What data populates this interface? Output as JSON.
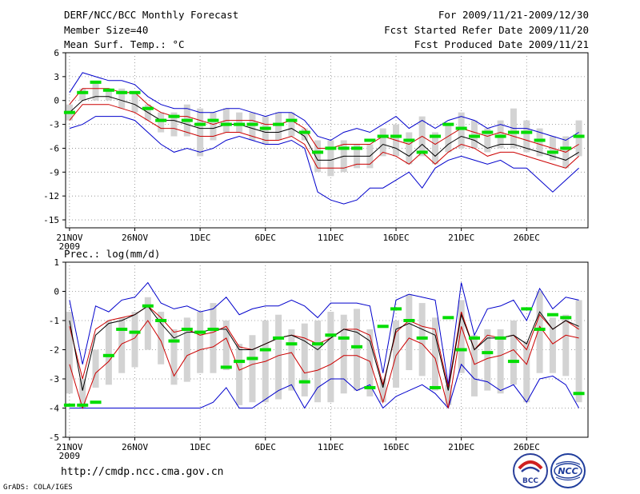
{
  "header": {
    "title": "DERF/NCC/BCC Monthly Forecast",
    "member_size": "Member Size=40",
    "temp_label": "Mean Surf. Temp.: °C",
    "period": "For 2009/11/21-2009/12/30",
    "start_date": "Fcst Started Refer Date 2009/11/20",
    "produced_date": "Fcst Produced Date 2009/11/21"
  },
  "footer": {
    "url": "http://cmdp.ncc.cma.gov.cn",
    "credit": "GrADS: COLA/IGES",
    "logo_bcc": "BCC",
    "logo_ncc": "NCC"
  },
  "colors": {
    "max_min": "#0000cc",
    "pct": "#cc0000",
    "median": "#000000",
    "box": "#d3d3d3",
    "obs": "#00dd00"
  },
  "chart_data": [
    {
      "type": "box",
      "name": "temperature",
      "ylabel": "Mean Surf. Temp.: °C",
      "ylim": [
        -16,
        6
      ],
      "yticks": [
        6,
        3,
        0,
        -3,
        -6,
        -9,
        -12,
        -15
      ],
      "xlim": [
        0.7,
        40.7
      ],
      "xticks": [
        {
          "day": 1,
          "label": "21NOV",
          "sub": "2009"
        },
        {
          "day": 6,
          "label": "26NOV"
        },
        {
          "day": 11,
          "label": "1DEC"
        },
        {
          "day": 16,
          "label": "6DEC"
        },
        {
          "day": 21,
          "label": "11DEC"
        },
        {
          "day": 26,
          "label": "16DEC"
        },
        {
          "day": 31,
          "label": "21DEC"
        },
        {
          "day": 36,
          "label": "26DEC"
        }
      ],
      "max": [
        1,
        3.5,
        3,
        2.5,
        2.5,
        2,
        0.5,
        -0.5,
        -1,
        -1,
        -1.5,
        -1.5,
        -1,
        -1,
        -1.5,
        -2,
        -1.5,
        -1.5,
        -2.5,
        -4.5,
        -5,
        -4,
        -3.5,
        -4,
        -3,
        -2,
        -3.5,
        -2.5,
        -3.5,
        -2.5,
        -2,
        -2.5,
        -3.5,
        -3,
        -3.5,
        -3.5,
        -4,
        -4.5,
        -5,
        -4
      ],
      "p_hi": [
        -0.5,
        1.5,
        1.5,
        1.5,
        1,
        1,
        -0.5,
        -1.5,
        -2,
        -2,
        -2.5,
        -3,
        -2.5,
        -2.5,
        -2.5,
        -3,
        -3,
        -2.5,
        -3.5,
        -6,
        -6,
        -5.5,
        -5.5,
        -5.5,
        -4.5,
        -5,
        -5.5,
        -4.5,
        -5.5,
        -4.5,
        -3.5,
        -4,
        -4.5,
        -4,
        -4.5,
        -5,
        -5.5,
        -6,
        -6.5,
        -5.5
      ],
      "median": [
        -1.5,
        0,
        0.5,
        0.5,
        0,
        -0.5,
        -1.5,
        -2.5,
        -2.5,
        -3,
        -3.5,
        -3.5,
        -3,
        -3,
        -3.5,
        -4,
        -4,
        -3.5,
        -4.5,
        -7.5,
        -7.5,
        -7,
        -7,
        -7,
        -5.5,
        -6,
        -7,
        -5.5,
        -7,
        -5.5,
        -4.5,
        -5,
        -6,
        -5.5,
        -5.5,
        -6,
        -6.5,
        -7,
        -7.5,
        -6.5
      ],
      "p_lo": [
        -2.5,
        -0.5,
        -0.5,
        -0.5,
        -1,
        -1.5,
        -2.5,
        -3.5,
        -3.5,
        -4,
        -4.5,
        -4.5,
        -4,
        -4,
        -4.5,
        -5,
        -5,
        -4.5,
        -5.5,
        -8.5,
        -8.5,
        -8.5,
        -8,
        -8,
        -6.5,
        -7,
        -8,
        -6.5,
        -8,
        -6.5,
        -5.5,
        -6,
        -7,
        -6.5,
        -6.5,
        -7,
        -7.5,
        -8,
        -8.5,
        -7
      ],
      "min": [
        -3.5,
        -3,
        -2,
        -2,
        -2,
        -2.5,
        -4,
        -5.5,
        -6.5,
        -6,
        -6.5,
        -6,
        -5,
        -4.5,
        -5,
        -5.5,
        -5.5,
        -5,
        -6,
        -11.5,
        -12.5,
        -13,
        -12.5,
        -11,
        -11,
        -10,
        -9,
        -11,
        -8.5,
        -7.5,
        -7,
        -7.5,
        -8,
        -7.5,
        -8.5,
        -8.5,
        -10,
        -11.5,
        -10,
        -8.5
      ],
      "box_hi": [
        -0.5,
        1.5,
        2.5,
        1.5,
        1.5,
        1,
        -0.5,
        -1.5,
        -1.5,
        -0.5,
        -1,
        -1.5,
        -1,
        -1.5,
        -1.5,
        -2,
        -1.5,
        -1.5,
        -3.5,
        -5,
        -5,
        -5,
        -5.5,
        -5.5,
        -3.5,
        -3,
        -4,
        -2,
        -4,
        -3,
        -1.5,
        -2.5,
        -3.5,
        -2.5,
        -1,
        -2.5,
        -3.5,
        -4.5,
        -4.5,
        -2.5
      ],
      "box_lo": [
        -2.5,
        0,
        0,
        0,
        -1,
        -1.5,
        -2.5,
        -4,
        -4.5,
        -4.5,
        -7,
        -5,
        -4,
        -4,
        -5,
        -5.5,
        -5,
        -4.5,
        -5,
        -9,
        -9.5,
        -9,
        -8.5,
        -8.5,
        -7,
        -7,
        -8,
        -7,
        -8,
        -6.5,
        -6,
        -6,
        -6.5,
        -6,
        -6,
        -6.5,
        -7,
        -7.5,
        -8.5,
        -7
      ],
      "observed": [
        -1.5,
        1,
        2.3,
        1.3,
        1,
        1,
        -1,
        -2.5,
        -2,
        -2.5,
        -3,
        -2.5,
        -3,
        -3,
        -3,
        -3.5,
        -3,
        -2.5,
        -4,
        -6.5,
        -6,
        -6,
        -6,
        -5,
        -4.5,
        -4.5,
        -5,
        -6.5,
        -4.5,
        -3,
        -3.5,
        -4.5,
        -4,
        -4.5,
        -4,
        -4,
        -5,
        -6.5,
        -6,
        -4.5
      ]
    },
    {
      "type": "box",
      "name": "precipitation",
      "ylabel": "Prec.: log(mm/d)",
      "ylim": [
        -5,
        1
      ],
      "yticks": [
        1,
        0,
        -1,
        -2,
        -3,
        -4,
        -5
      ],
      "xlim": [
        0.7,
        40.7
      ],
      "xticks": [
        {
          "day": 1,
          "label": "21NOV",
          "sub": "2009"
        },
        {
          "day": 6,
          "label": "26NOV"
        },
        {
          "day": 11,
          "label": "1DEC"
        },
        {
          "day": 16,
          "label": "6DEC"
        },
        {
          "day": 21,
          "label": "11DEC"
        },
        {
          "day": 26,
          "label": "16DEC"
        },
        {
          "day": 31,
          "label": "21DEC"
        },
        {
          "day": 36,
          "label": "26DEC"
        }
      ],
      "max": [
        -0.3,
        -2.5,
        -0.5,
        -0.7,
        -0.3,
        -0.2,
        0.3,
        -0.4,
        -0.6,
        -0.5,
        -0.7,
        -0.6,
        -0.2,
        -0.8,
        -0.6,
        -0.5,
        -0.5,
        -0.3,
        -0.5,
        -0.9,
        -0.4,
        -0.4,
        -0.4,
        -0.5,
        -2.8,
        -0.3,
        -0.1,
        -0.2,
        -0.3,
        -3.2,
        0.3,
        -1.5,
        -0.6,
        -0.5,
        -0.3,
        -1,
        0.1,
        -0.6,
        -0.2,
        -0.3
      ],
      "p_hi": [
        -1.2,
        -3,
        -1.3,
        -1,
        -0.9,
        -0.8,
        -0.5,
        -0.9,
        -1.4,
        -1.3,
        -1.5,
        -1.4,
        -1.2,
        -1.9,
        -2,
        -1.8,
        -1.6,
        -1.5,
        -1.6,
        -1.8,
        -1.6,
        -1.3,
        -1.3,
        -1.5,
        -3.2,
        -1.4,
        -1,
        -1.2,
        -1.3,
        -3.3,
        -0.7,
        -2,
        -1.5,
        -1.6,
        -1.5,
        -2,
        -0.8,
        -1.3,
        -1,
        -1.3
      ],
      "median": [
        -1,
        -3.4,
        -1.5,
        -1.1,
        -1,
        -0.8,
        -0.5,
        -1.1,
        -1.6,
        -1.4,
        -1.4,
        -1.3,
        -1.3,
        -2,
        -2,
        -1.8,
        -1.6,
        -1.5,
        -1.7,
        -2,
        -1.6,
        -1.3,
        -1.4,
        -1.7,
        -3.3,
        -1.3,
        -1.1,
        -1.3,
        -1.5,
        -3.4,
        -0.8,
        -2,
        -1.6,
        -1.6,
        -1.5,
        -1.8,
        -0.7,
        -1.3,
        -1,
        -1.2
      ],
      "p_lo": [
        -2.5,
        -4,
        -2.8,
        -2.4,
        -1.8,
        -1.6,
        -1,
        -1.7,
        -2.9,
        -2.2,
        -2,
        -1.9,
        -1.6,
        -2.7,
        -2.5,
        -2.4,
        -2.2,
        -2.1,
        -2.8,
        -2.7,
        -2.5,
        -2.2,
        -2.2,
        -2.4,
        -3.8,
        -2.2,
        -1.6,
        -1.8,
        -2.3,
        -4,
        -1.2,
        -2.5,
        -2.3,
        -2.2,
        -2,
        -2.5,
        -1.2,
        -1.8,
        -1.5,
        -1.6
      ],
      "min": [
        -4,
        -4,
        -4,
        -4,
        -4,
        -4,
        -4,
        -4,
        -4,
        -4,
        -4,
        -3.8,
        -3.3,
        -4,
        -4,
        -3.7,
        -3.4,
        -3.2,
        -4,
        -3.3,
        -3,
        -3,
        -3.4,
        -3.2,
        -4,
        -3.6,
        -3.4,
        -3.2,
        -3.5,
        -4,
        -2.5,
        -3,
        -3.1,
        -3.4,
        -3.2,
        -3.8,
        -3,
        -2.9,
        -3.2,
        -4
      ],
      "box_hi": [
        -0.7,
        -3,
        -2,
        -1,
        -0.9,
        -0.7,
        -0.2,
        -0.7,
        -1.3,
        -0.9,
        -0.7,
        -0.4,
        -1,
        -1.8,
        -1.5,
        -1,
        -0.8,
        -1.3,
        -1.1,
        -1,
        -0.7,
        -0.8,
        -0.6,
        -1.3,
        -3,
        -1,
        -0.1,
        -0.4,
        -0.9,
        -3.2,
        -0.3,
        -1.5,
        -1.3,
        -1.3,
        -1,
        -1.7,
        0,
        -0.9,
        -0.8,
        -0.3
      ],
      "box_lo": [
        -3.5,
        -4,
        -3.3,
        -3.2,
        -2.8,
        -2.6,
        -2,
        -2.5,
        -3.2,
        -3.1,
        -2.8,
        -2.8,
        -2.7,
        -3.9,
        -3.8,
        -3.8,
        -3.7,
        -3.4,
        -3.6,
        -3.8,
        -3.8,
        -3.5,
        -3.4,
        -3.6,
        -3.8,
        -3.3,
        -2.7,
        -2.9,
        -3.4,
        -3.9,
        -2.8,
        -3.6,
        -3.4,
        -3.5,
        -3.2,
        -3.8,
        -2.8,
        -2.8,
        -2.9,
        -3.8
      ],
      "observed": [
        -3.9,
        -3.9,
        -3.8,
        -2.2,
        -1.3,
        -1.4,
        -0.5,
        -1,
        -1.7,
        -1.3,
        -1.4,
        -1.3,
        -2.6,
        -2.4,
        -2.3,
        -2,
        -1.6,
        -1.8,
        -3.1,
        -1.8,
        -1.5,
        -1.6,
        -1.9,
        -3.3,
        -1.2,
        -0.6,
        -1,
        -1.6,
        -3.3,
        -0.9,
        -2,
        -1.6,
        -2.1,
        -1.6,
        -2.4,
        -0.6,
        -1.3,
        -0.8,
        -0.9,
        -3.5
      ]
    }
  ]
}
